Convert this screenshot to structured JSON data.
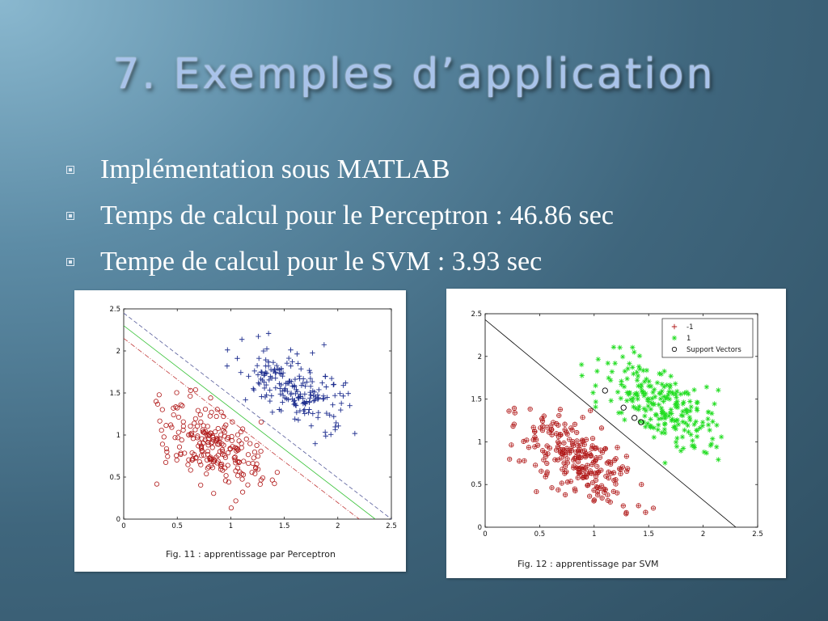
{
  "slide": {
    "title": "7. Exemples d’application",
    "bullets": [
      "Implémentation sous MATLAB",
      "Temps de calcul pour le Perceptron : 46.86 sec",
      "Tempe de calcul pour le SVM : 3.93 sec"
    ]
  },
  "colors": {
    "class_pos": "#1f2f8f",
    "class_neg": "#b01818",
    "class_pos_svm": "#22dd22",
    "separator_green": "#30c030",
    "margin_blue": "#555b9a",
    "margin_red": "#c23a3a"
  },
  "chart_data": [
    {
      "type": "scatter",
      "caption": "Fig. 11 : apprentissage par Perceptron",
      "xlim": [
        0,
        2.5
      ],
      "ylim": [
        0,
        2.5
      ],
      "xticks": [
        "0",
        "0.5",
        "1",
        "1.5",
        "2",
        "2.5"
      ],
      "yticks": [
        "0",
        "0.5",
        "1",
        "1.5",
        "2",
        "2.5"
      ],
      "grid": false,
      "clusters": [
        {
          "marker": "plus",
          "color": "#1f2f8f",
          "count": 200,
          "x_range": [
            0.85,
            2.25
          ],
          "y_range": [
            0.85,
            2.25
          ],
          "center": [
            1.6,
            1.55
          ]
        },
        {
          "marker": "circle",
          "color": "#b01818",
          "count": 230,
          "x_range": [
            0.15,
            1.6
          ],
          "y_range": [
            0.12,
            1.55
          ],
          "center": [
            0.85,
            0.85
          ]
        }
      ],
      "lines": [
        {
          "style": "solid",
          "color": "green",
          "points": [
            [
              0,
              2.3
            ],
            [
              2.35,
              0
            ]
          ]
        },
        {
          "style": "dashed",
          "color": "blue",
          "points": [
            [
              0,
              2.45
            ],
            [
              2.5,
              0
            ]
          ]
        },
        {
          "style": "dashdot",
          "color": "red",
          "points": [
            [
              0,
              2.15
            ],
            [
              2.2,
              0
            ]
          ]
        }
      ]
    },
    {
      "type": "scatter",
      "caption": "Fig. 12 : apprentissage par SVM",
      "xlim": [
        0,
        2.5
      ],
      "ylim": [
        0,
        2.5
      ],
      "xticks": [
        "0",
        "0.5",
        "1",
        "1.5",
        "2",
        "2.5"
      ],
      "yticks": [
        "0",
        "0.5",
        "1",
        "1.5",
        "2",
        "2.5"
      ],
      "grid": false,
      "legend": {
        "placement": "top-right",
        "entries": [
          {
            "label": "-1",
            "marker": "plus",
            "color": "#b01818"
          },
          {
            "label": "1",
            "marker": "star",
            "color": "#22dd22"
          },
          {
            "label": "Support Vectors",
            "marker": "circle",
            "color": "#000000"
          }
        ]
      },
      "clusters": [
        {
          "label": "-1",
          "marker": "plus-circle",
          "color": "#b01818",
          "count": 230,
          "x_range": [
            0.15,
            1.6
          ],
          "y_range": [
            0.12,
            1.55
          ],
          "center": [
            0.85,
            0.8
          ]
        },
        {
          "label": "1",
          "marker": "star",
          "color": "#22dd22",
          "count": 230,
          "x_range": [
            0.85,
            2.25
          ],
          "y_range": [
            0.75,
            2.2
          ],
          "center": [
            1.6,
            1.45
          ]
        }
      ],
      "support_vectors": [
        [
          1.1,
          1.6
        ],
        [
          1.27,
          1.4
        ],
        [
          1.37,
          1.28
        ],
        [
          1.43,
          1.23
        ]
      ],
      "lines": [
        {
          "style": "solid",
          "color": "black",
          "points": [
            [
              0,
              2.43
            ],
            [
              2.3,
              0
            ]
          ]
        }
      ]
    }
  ]
}
